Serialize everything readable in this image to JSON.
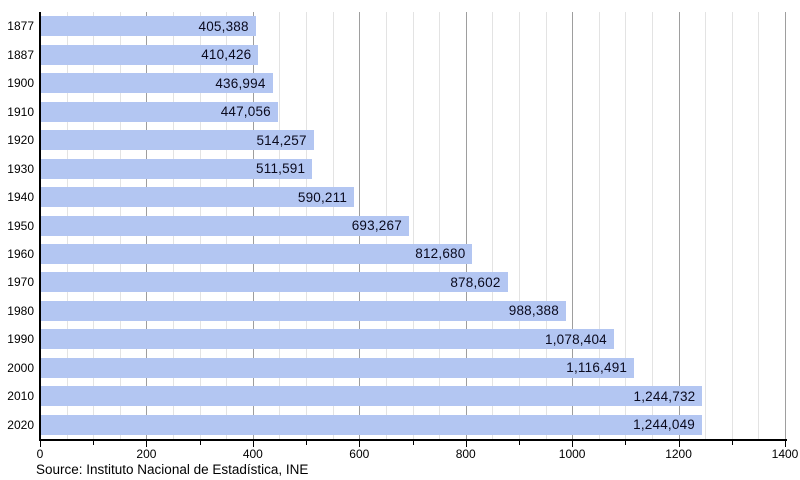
{
  "chart_data": {
    "type": "bar",
    "orientation": "horizontal",
    "title": "",
    "xlabel": "",
    "ylabel": "",
    "categories": [
      "1877",
      "1887",
      "1900",
      "1910",
      "1920",
      "1930",
      "1940",
      "1950",
      "1960",
      "1970",
      "1980",
      "1990",
      "2000",
      "2010",
      "2020"
    ],
    "values": [
      405388,
      410426,
      436994,
      447056,
      514257,
      511591,
      590211,
      693267,
      812680,
      878602,
      988388,
      1078404,
      1116491,
      1244732,
      1244049
    ],
    "value_labels": [
      "405,388",
      "410,426",
      "436,994",
      "447,056",
      "514,257",
      "511,591",
      "590,211",
      "693,267",
      "812,680",
      "878,602",
      "988,388",
      "1,078,404",
      "1,116,491",
      "1,244,732",
      "1,244,049"
    ],
    "axis_unit_divisor": 1000,
    "xlim": [
      0,
      1400
    ],
    "x_tick_labels": [
      "0",
      "200",
      "400",
      "600",
      "800",
      "1000",
      "1200",
      "1400"
    ],
    "x_tick_step": 100,
    "x_major_step": 200,
    "grid_minor_step": 50,
    "grid": "on",
    "legend": "none",
    "source": "Source: Instituto Nacional de Estadística, INE",
    "colors": {
      "bar": "#b3c6f2",
      "bar_label": "#0a0a1e",
      "grid_minor": "#e3e3e3",
      "grid_major": "#9e9e9e",
      "axis": "#000000",
      "background": "#ffffff"
    }
  }
}
